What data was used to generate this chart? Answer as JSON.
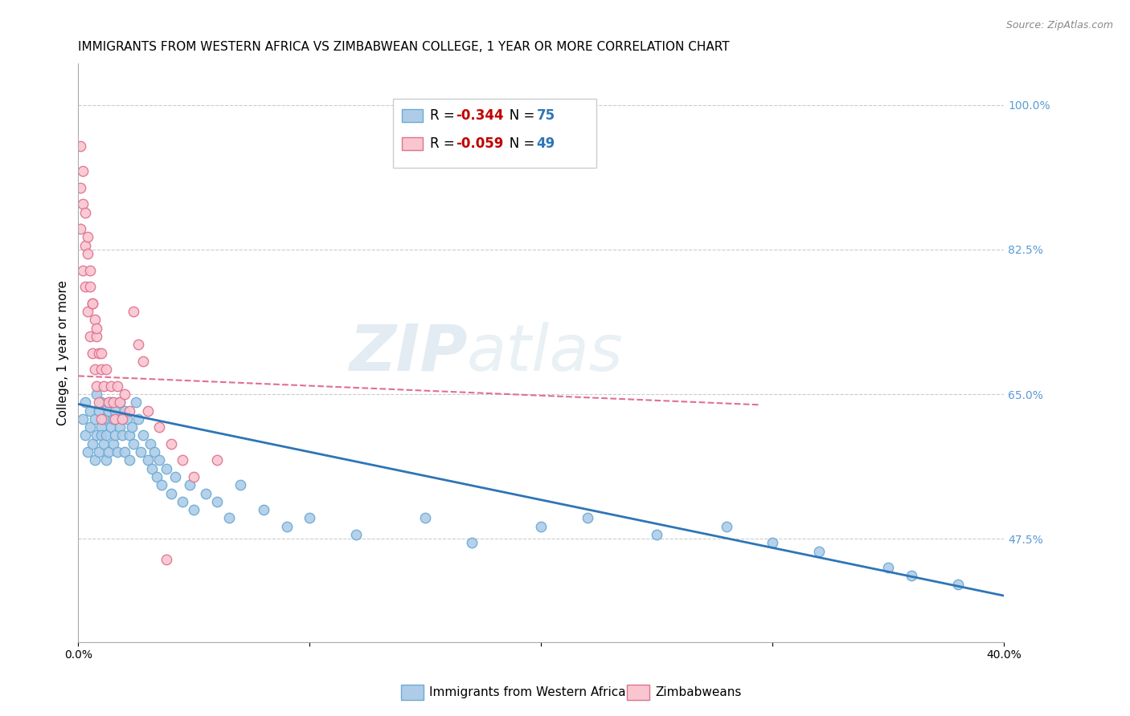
{
  "title": "IMMIGRANTS FROM WESTERN AFRICA VS ZIMBABWEAN COLLEGE, 1 YEAR OR MORE CORRELATION CHART",
  "source": "Source: ZipAtlas.com",
  "ylabel": "College, 1 year or more",
  "xlim": [
    0.0,
    0.4
  ],
  "ylim": [
    0.35,
    1.05
  ],
  "xticks": [
    0.0,
    0.1,
    0.2,
    0.3,
    0.4
  ],
  "xtick_labels": [
    "0.0%",
    "",
    "",
    "",
    "40.0%"
  ],
  "ytick_positions": [
    1.0,
    0.825,
    0.65,
    0.475
  ],
  "ytick_labels": [
    "100.0%",
    "82.5%",
    "65.0%",
    "47.5%"
  ],
  "right_ytick_color": "#5b9bd5",
  "grid_color": "#cccccc",
  "background_color": "#ffffff",
  "watermark_zip": "ZIP",
  "watermark_atlas": "atlas",
  "series": [
    {
      "name": "Immigrants from Western Africa",
      "R": "-0.344",
      "N": "75",
      "marker_facecolor": "#aecce8",
      "marker_edgecolor": "#6aaad4",
      "trend_color": "#2e75b6",
      "trend_style": "solid",
      "x": [
        0.002,
        0.003,
        0.003,
        0.004,
        0.005,
        0.005,
        0.006,
        0.007,
        0.007,
        0.008,
        0.008,
        0.009,
        0.009,
        0.01,
        0.01,
        0.01,
        0.011,
        0.011,
        0.012,
        0.012,
        0.013,
        0.013,
        0.014,
        0.014,
        0.015,
        0.015,
        0.016,
        0.016,
        0.017,
        0.018,
        0.018,
        0.019,
        0.02,
        0.02,
        0.021,
        0.022,
        0.022,
        0.023,
        0.024,
        0.025,
        0.026,
        0.027,
        0.028,
        0.03,
        0.031,
        0.032,
        0.033,
        0.034,
        0.035,
        0.036,
        0.038,
        0.04,
        0.042,
        0.045,
        0.048,
        0.05,
        0.055,
        0.06,
        0.065,
        0.07,
        0.08,
        0.09,
        0.1,
        0.12,
        0.15,
        0.17,
        0.2,
        0.22,
        0.25,
        0.28,
        0.3,
        0.32,
        0.35,
        0.36,
        0.38
      ],
      "y": [
        0.62,
        0.6,
        0.64,
        0.58,
        0.61,
        0.63,
        0.59,
        0.57,
        0.62,
        0.6,
        0.65,
        0.58,
        0.63,
        0.61,
        0.64,
        0.6,
        0.59,
        0.62,
        0.57,
        0.6,
        0.63,
        0.58,
        0.61,
        0.64,
        0.62,
        0.59,
        0.6,
        0.63,
        0.58,
        0.61,
        0.64,
        0.6,
        0.63,
        0.58,
        0.62,
        0.6,
        0.57,
        0.61,
        0.59,
        0.64,
        0.62,
        0.58,
        0.6,
        0.57,
        0.59,
        0.56,
        0.58,
        0.55,
        0.57,
        0.54,
        0.56,
        0.53,
        0.55,
        0.52,
        0.54,
        0.51,
        0.53,
        0.52,
        0.5,
        0.54,
        0.51,
        0.49,
        0.5,
        0.48,
        0.5,
        0.47,
        0.49,
        0.5,
        0.48,
        0.49,
        0.47,
        0.46,
        0.44,
        0.43,
        0.42
      ]
    },
    {
      "name": "Zimbabweans",
      "R": "-0.059",
      "N": "49",
      "marker_facecolor": "#f9c6d0",
      "marker_edgecolor": "#e07090",
      "trend_color": "#e07090",
      "trend_style": "dashed",
      "x": [
        0.001,
        0.001,
        0.002,
        0.002,
        0.003,
        0.003,
        0.004,
        0.004,
        0.005,
        0.005,
        0.006,
        0.006,
        0.007,
        0.007,
        0.008,
        0.008,
        0.009,
        0.009,
        0.01,
        0.01,
        0.011,
        0.012,
        0.013,
        0.014,
        0.015,
        0.016,
        0.017,
        0.018,
        0.019,
        0.02,
        0.022,
        0.024,
        0.026,
        0.028,
        0.03,
        0.035,
        0.04,
        0.045,
        0.05,
        0.06,
        0.001,
        0.002,
        0.003,
        0.004,
        0.005,
        0.006,
        0.008,
        0.01,
        0.038
      ],
      "y": [
        0.9,
        0.85,
        0.92,
        0.8,
        0.83,
        0.78,
        0.75,
        0.82,
        0.72,
        0.78,
        0.76,
        0.7,
        0.74,
        0.68,
        0.72,
        0.66,
        0.7,
        0.64,
        0.68,
        0.62,
        0.66,
        0.68,
        0.64,
        0.66,
        0.64,
        0.62,
        0.66,
        0.64,
        0.62,
        0.65,
        0.63,
        0.75,
        0.71,
        0.69,
        0.63,
        0.61,
        0.59,
        0.57,
        0.55,
        0.57,
        0.95,
        0.88,
        0.87,
        0.84,
        0.8,
        0.76,
        0.73,
        0.7,
        0.45
      ]
    }
  ],
  "blue_trend_x": [
    0.0,
    0.4
  ],
  "blue_trend_y": [
    0.638,
    0.406
  ],
  "pink_trend_x": [
    0.0,
    0.295
  ],
  "pink_trend_y": [
    0.672,
    0.637
  ],
  "title_fontsize": 11,
  "axis_label_fontsize": 11,
  "tick_fontsize": 10,
  "legend_fontsize": 12,
  "marker_size": 80,
  "legend_R_color": "#c00000",
  "legend_N_color": "#2e75b6"
}
